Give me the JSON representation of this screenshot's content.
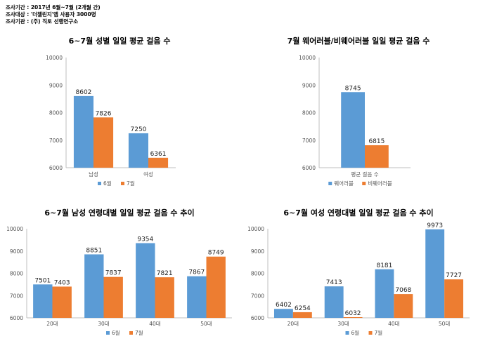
{
  "header": {
    "line1": "조사기간 : 2017년 6월~7월 (2개월 간)",
    "line2": "조사대상 : '더챌린지'앱 사용자 3000명",
    "line3": "조사기관 : (주) 직토 선행연구소"
  },
  "colors": {
    "blue": "#5b9bd5",
    "orange": "#ed7d31",
    "axis": "#bfbfbf"
  },
  "chart_data": [
    {
      "type": "bar",
      "title": "6~7월 성별 일일 평균 걸음 수",
      "categories": [
        "남성",
        "여성"
      ],
      "series": [
        {
          "name": "6월",
          "values": [
            8602,
            7250
          ]
        },
        {
          "name": "7월",
          "values": [
            7826,
            6361
          ]
        }
      ],
      "ylim": [
        6000,
        10000
      ],
      "yticks": [
        6000,
        7000,
        8000,
        9000,
        10000
      ],
      "legend": "bottom"
    },
    {
      "type": "bar",
      "title": "7월 웨어러블/비웨어러블 일일 평균 걸음 수",
      "categories": [
        "평균 걸음 수"
      ],
      "series": [
        {
          "name": "웨어러블",
          "values": [
            8745
          ]
        },
        {
          "name": "비웨어러블",
          "values": [
            6815
          ]
        }
      ],
      "ylim": [
        6000,
        10000
      ],
      "yticks": [
        6000,
        7000,
        8000,
        9000,
        10000
      ],
      "legend": "bottom"
    },
    {
      "type": "bar",
      "title": "6~7월 남성 연령대별 일일 평균 걸음 수 추이",
      "categories": [
        "20대",
        "30대",
        "40대",
        "50대"
      ],
      "series": [
        {
          "name": "6월",
          "values": [
            7501,
            8851,
            9354,
            7867
          ]
        },
        {
          "name": "7월",
          "values": [
            7403,
            7837,
            7821,
            8749
          ]
        }
      ],
      "ylim": [
        6000,
        10000
      ],
      "yticks": [
        6000,
        7000,
        8000,
        9000,
        10000
      ],
      "legend": "bottom"
    },
    {
      "type": "bar",
      "title": "6~7월 여성 연령대별 일일 평균 걸음 수 추이",
      "categories": [
        "20대",
        "30대",
        "40대",
        "50대"
      ],
      "series": [
        {
          "name": "6월",
          "values": [
            6402,
            7413,
            8181,
            9973
          ]
        },
        {
          "name": "7월",
          "values": [
            6254,
            6032,
            7068,
            7727
          ]
        }
      ],
      "ylim": [
        6000,
        10000
      ],
      "yticks": [
        6000,
        7000,
        8000,
        9000,
        10000
      ],
      "legend": "bottom"
    }
  ]
}
